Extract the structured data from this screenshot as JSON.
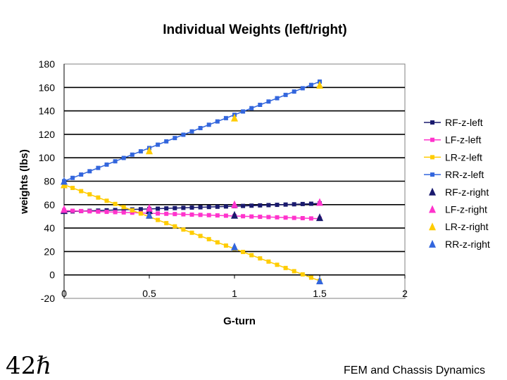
{
  "slide": {
    "number": "42",
    "number_mark": "ℏ",
    "footer": "FEM and Chassis Dynamics"
  },
  "chart_data": {
    "type": "line",
    "title": "Individual Weights (left/right)",
    "xlabel": "G-turn",
    "ylabel": "weights (lbs)",
    "xlim": [
      0,
      2
    ],
    "ylim": [
      -20,
      180
    ],
    "xticks": [
      0,
      0.5,
      1,
      1.5,
      2
    ],
    "xtick_labels": [
      "0",
      "0.5",
      "1",
      "1.5",
      "2"
    ],
    "yticks": [
      -20,
      0,
      20,
      40,
      60,
      80,
      100,
      120,
      140,
      160,
      180
    ],
    "ytick_labels": [
      "-20",
      "0",
      "20",
      "40",
      "60",
      "80",
      "100",
      "120",
      "140",
      "160",
      "180"
    ],
    "grid": "horizontal",
    "legend_position": "right",
    "series": [
      {
        "name": "RF-z-left",
        "color": "#1a1a6e",
        "marker": "square",
        "line": true,
        "x": [
          0,
          1.5
        ],
        "y": [
          54,
          61
        ]
      },
      {
        "name": "LF-z-left",
        "color": "#ff33cc",
        "marker": "square",
        "line": true,
        "x": [
          0,
          1.5
        ],
        "y": [
          55,
          48
        ]
      },
      {
        "name": "LR-z-left",
        "color": "#ffcc00",
        "marker": "square",
        "line": true,
        "x": [
          0,
          1.5
        ],
        "y": [
          77,
          -5
        ]
      },
      {
        "name": "RR-z-left",
        "color": "#3366dd",
        "marker": "square",
        "line": true,
        "x": [
          0,
          1.5
        ],
        "y": [
          80,
          165
        ]
      },
      {
        "name": "RF-z-right",
        "color": "#1a1a6e",
        "marker": "triangle",
        "line": false,
        "x": [
          0,
          0.5,
          1,
          1.5
        ],
        "y": [
          55,
          55,
          51,
          49
        ]
      },
      {
        "name": "LF-z-right",
        "color": "#ff33cc",
        "marker": "triangle",
        "line": false,
        "x": [
          0,
          0.5,
          1,
          1.5
        ],
        "y": [
          56,
          57,
          60,
          62
        ]
      },
      {
        "name": "LR-z-right",
        "color": "#ffcc00",
        "marker": "triangle",
        "line": false,
        "x": [
          0,
          0.5,
          1,
          1.5
        ],
        "y": [
          77,
          106,
          134,
          162
        ]
      },
      {
        "name": "RR-z-right",
        "color": "#3366dd",
        "marker": "triangle",
        "line": false,
        "x": [
          0,
          0.5,
          1,
          1.5
        ],
        "y": [
          80,
          51,
          24,
          -5
        ]
      }
    ]
  }
}
